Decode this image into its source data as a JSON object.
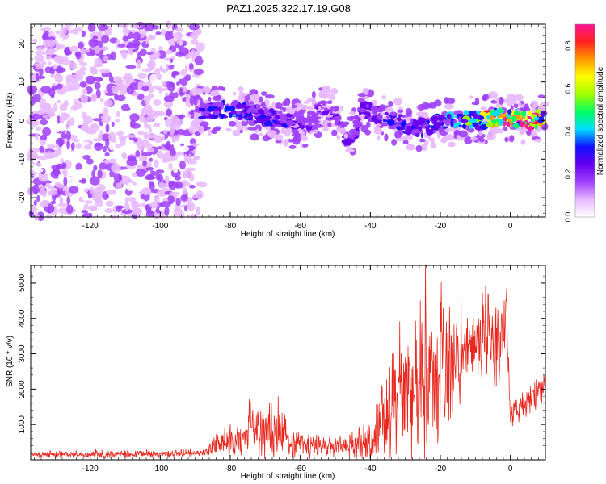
{
  "title": "PAZ1.2025.322.17.19.G08",
  "chart_data": [
    {
      "type": "heatmap",
      "title": "PAZ1.2025.322.17.19.G08",
      "xlabel": "Height of straight line (km)",
      "ylabel": "Frequency (Hz)",
      "xlim": [
        -137,
        10
      ],
      "ylim": [
        -25,
        25
      ],
      "xticks": [
        -120,
        -100,
        -80,
        -60,
        -40,
        -20,
        0
      ],
      "yticks": [
        -20,
        -10,
        0,
        10,
        20
      ],
      "xtick_labels": [
        "-120",
        "-100",
        "-80",
        "-60",
        "-40",
        "-20",
        "0"
      ],
      "ytick_labels": [
        "-20",
        "-10",
        "0",
        "10",
        "20"
      ],
      "colorbar": {
        "label": "Normalized spectral amplitude",
        "range": [
          0,
          0.9
        ],
        "ticks": [
          0.0,
          0.2,
          0.4,
          0.6,
          0.8
        ],
        "tick_labels": [
          "0.0",
          "0.2",
          "0.4",
          "0.6",
          "0.8"
        ],
        "colors": [
          "#ffffff",
          "#e8b8ff",
          "#a040ff",
          "#6600ee",
          "#1010ff",
          "#00ddff",
          "#00ff60",
          "#a0ff00",
          "#ffff00",
          "#ff9900",
          "#ff2020",
          "#ff1493"
        ]
      },
      "ridge": [
        {
          "x": -85,
          "y": 2.5,
          "a": 0.3
        },
        {
          "x": -80,
          "y": 3.0,
          "a": 0.32
        },
        {
          "x": -75,
          "y": 2.0,
          "a": 0.3
        },
        {
          "x": -70,
          "y": 1.0,
          "a": 0.28
        },
        {
          "x": -66,
          "y": 0.5,
          "a": 0.26
        },
        {
          "x": -62,
          "y": -1.0,
          "a": 0.25
        },
        {
          "x": -58,
          "y": -1.0,
          "a": 0.18
        },
        {
          "x": -54,
          "y": 3.0,
          "a": 0.2
        },
        {
          "x": -50,
          "y": 2.0,
          "a": 0.22
        },
        {
          "x": -46,
          "y": -6.0,
          "a": 0.24
        },
        {
          "x": -42,
          "y": 3.0,
          "a": 0.22
        },
        {
          "x": -38,
          "y": 1.5,
          "a": 0.24
        },
        {
          "x": -34,
          "y": 0.5,
          "a": 0.26
        },
        {
          "x": -30,
          "y": -1.0,
          "a": 0.28
        },
        {
          "x": -26,
          "y": -2.0,
          "a": 0.26
        },
        {
          "x": -22,
          "y": -1.0,
          "a": 0.3
        },
        {
          "x": -18,
          "y": -0.5,
          "a": 0.32
        },
        {
          "x": -14,
          "y": 0.5,
          "a": 0.4
        },
        {
          "x": -10,
          "y": 0.0,
          "a": 0.55
        },
        {
          "x": -6,
          "y": 0.5,
          "a": 0.7
        },
        {
          "x": -2,
          "y": 1.0,
          "a": 0.8
        },
        {
          "x": 2,
          "y": 0.5,
          "a": 0.75
        },
        {
          "x": 6,
          "y": 0.0,
          "a": 0.9
        },
        {
          "x": 9,
          "y": 0.5,
          "a": 0.6
        }
      ]
    },
    {
      "type": "line",
      "xlabel": "Height of straight line (km)",
      "ylabel": "SNR (10 * v/v)",
      "xlim": [
        -137,
        10
      ],
      "ylim": [
        0,
        5500
      ],
      "xticks": [
        -120,
        -100,
        -80,
        -60,
        -40,
        -20,
        0
      ],
      "yticks": [
        1000,
        2000,
        3000,
        4000,
        5000
      ],
      "xtick_labels": [
        "-120",
        "-100",
        "-80",
        "-60",
        "-40",
        "-20",
        "0"
      ],
      "ytick_labels": [
        "1000",
        "2000",
        "3000",
        "4000",
        "5000"
      ],
      "series": [
        {
          "name": "SNR",
          "color": "#e8281e",
          "envelope": [
            {
              "x": -137,
              "base": 150,
              "amp": 120
            },
            {
              "x": -100,
              "base": 160,
              "amp": 120
            },
            {
              "x": -88,
              "base": 200,
              "amp": 150
            },
            {
              "x": -84,
              "base": 400,
              "amp": 400
            },
            {
              "x": -78,
              "base": 550,
              "amp": 650
            },
            {
              "x": -72,
              "base": 800,
              "amp": 900
            },
            {
              "x": -68,
              "base": 900,
              "amp": 1200
            },
            {
              "x": -64,
              "base": 600,
              "amp": 700
            },
            {
              "x": -58,
              "base": 400,
              "amp": 450
            },
            {
              "x": -52,
              "base": 350,
              "amp": 350
            },
            {
              "x": -46,
              "base": 400,
              "amp": 400
            },
            {
              "x": -42,
              "base": 500,
              "amp": 550
            },
            {
              "x": -38,
              "base": 800,
              "amp": 1000
            },
            {
              "x": -34,
              "base": 1500,
              "amp": 1700
            },
            {
              "x": -30,
              "base": 2000,
              "amp": 2400
            },
            {
              "x": -26,
              "base": 1900,
              "amp": 2600
            },
            {
              "x": -22,
              "base": 2200,
              "amp": 2800
            },
            {
              "x": -19,
              "base": 2400,
              "amp": 3000
            },
            {
              "x": -16,
              "base": 2700,
              "amp": 1800
            },
            {
              "x": -12,
              "base": 3100,
              "amp": 700
            },
            {
              "x": -8,
              "base": 3400,
              "amp": 1600
            },
            {
              "x": -4,
              "base": 3200,
              "amp": 1800
            },
            {
              "x": -1,
              "base": 4100,
              "amp": 1000
            },
            {
              "x": 0,
              "base": 1300,
              "amp": 500
            },
            {
              "x": 4,
              "base": 1500,
              "amp": 500
            },
            {
              "x": 8,
              "base": 1900,
              "amp": 600
            },
            {
              "x": 10,
              "base": 2000,
              "amp": 500
            }
          ]
        }
      ]
    }
  ]
}
